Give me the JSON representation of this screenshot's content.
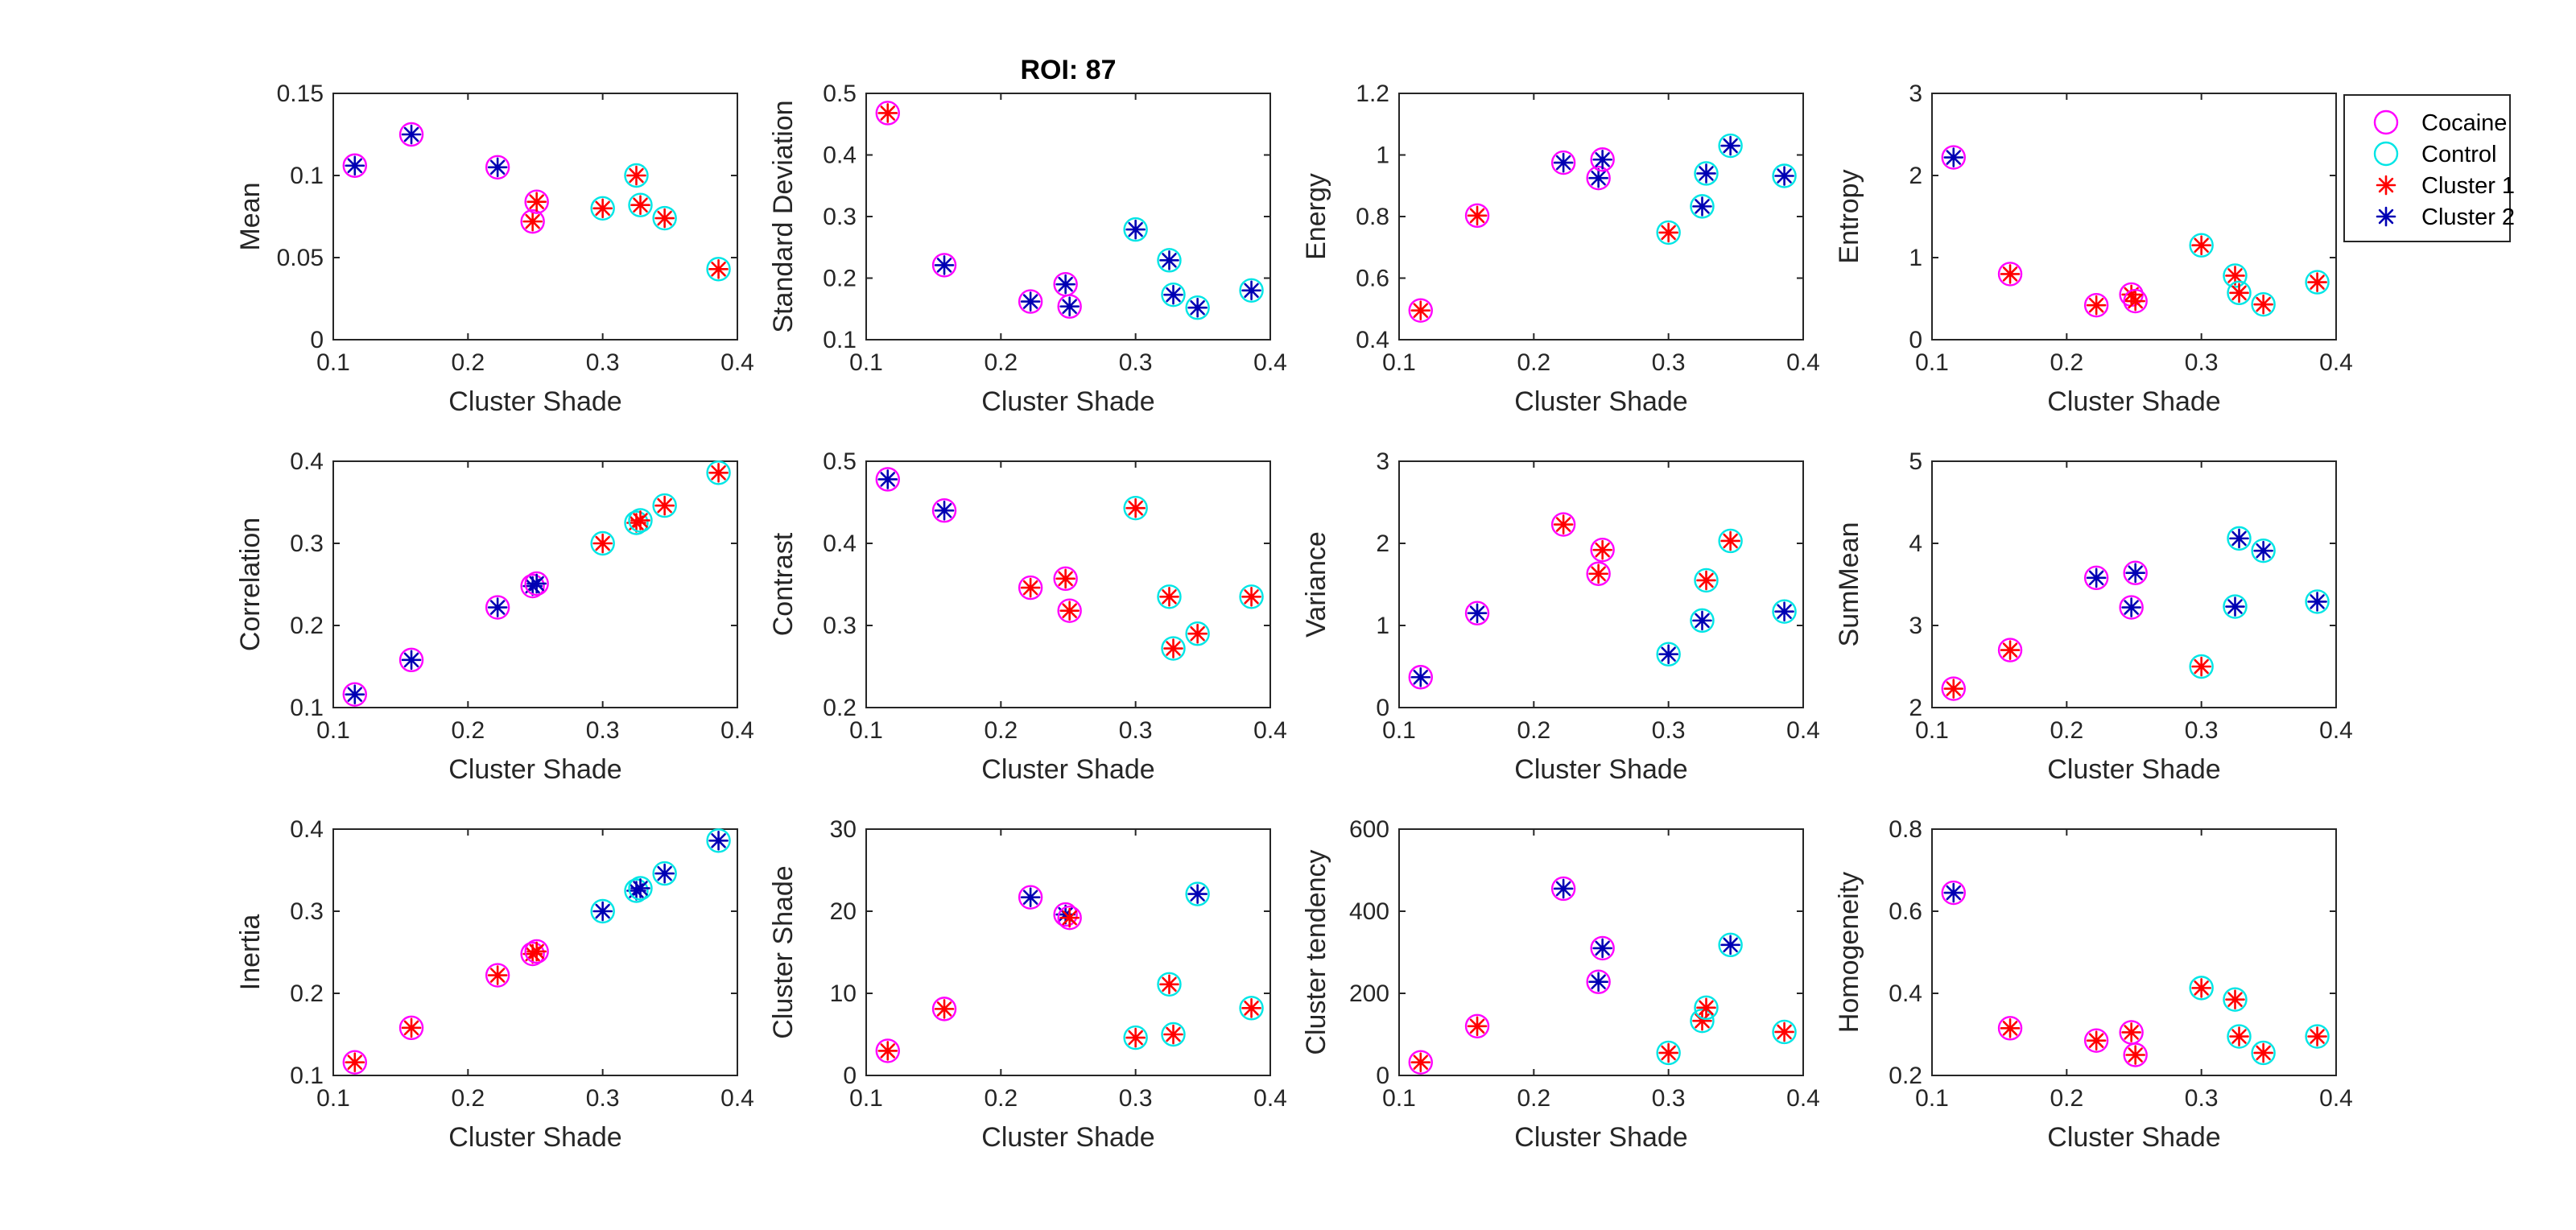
{
  "chart_data": {
    "type": "scatter",
    "title": "ROI: 87",
    "legend_position": "top-right",
    "colors": {
      "Cocaine": "#ff00ff",
      "Control": "#00e5e5",
      "Cluster 1": "#ff0000",
      "Cluster 2": "#0000b4"
    },
    "legend": [
      {
        "label": "Cocaine",
        "marker": "circle",
        "color": "#ff00ff"
      },
      {
        "label": "Control",
        "marker": "circle",
        "color": "#00e5e5"
      },
      {
        "label": "Cluster 1",
        "marker": "asterisk",
        "color": "#ff0000"
      },
      {
        "label": "Cluster 2",
        "marker": "asterisk",
        "color": "#0000b4"
      }
    ],
    "x": [
      0.116,
      0.158,
      0.222,
      0.248,
      0.251,
      0.3,
      0.325,
      0.328,
      0.346,
      0.386
    ],
    "group": [
      "Cocaine",
      "Cocaine",
      "Cocaine",
      "Cocaine",
      "Cocaine",
      "Control",
      "Control",
      "Control",
      "Control",
      "Control"
    ],
    "subplots": [
      {
        "ylabel": "Mean",
        "xlabel": "Cluster Shade",
        "xlim": [
          0.1,
          0.4
        ],
        "xticks": [
          "0.1",
          "0.2",
          "0.3",
          "0.4"
        ],
        "ylim": [
          0,
          0.15
        ],
        "yticks": [
          "0",
          "0.05",
          "0.1",
          "0.15"
        ],
        "y": [
          0.106,
          0.125,
          0.105,
          0.072,
          0.084,
          0.08,
          0.1,
          0.082,
          0.074,
          0.043
        ],
        "cluster": [
          2,
          2,
          2,
          1,
          1,
          1,
          1,
          1,
          1,
          1
        ]
      },
      {
        "ylabel": "Standard Deviation",
        "xlabel": "Cluster Shade",
        "xlim": [
          0.1,
          0.4
        ],
        "xticks": [
          "0.1",
          "0.2",
          "0.3",
          "0.4"
        ],
        "ylim": [
          0.1,
          0.5
        ],
        "yticks": [
          "0.1",
          "0.2",
          "0.3",
          "0.4",
          "0.5"
        ],
        "y": [
          0.468,
          0.221,
          0.162,
          0.19,
          0.154,
          0.279,
          0.229,
          0.173,
          0.152,
          0.18
        ],
        "cluster": [
          1,
          2,
          2,
          2,
          2,
          2,
          2,
          2,
          2,
          2
        ]
      },
      {
        "ylabel": "Energy",
        "xlabel": "Cluster Shade",
        "xlim": [
          0.1,
          0.4
        ],
        "xticks": [
          "0.1",
          "0.2",
          "0.3",
          "0.4"
        ],
        "ylim": [
          0.4,
          1.2
        ],
        "yticks": [
          "0.4",
          "0.6",
          "0.8",
          "1",
          "1.2"
        ],
        "y": [
          0.495,
          0.803,
          0.975,
          0.925,
          0.985,
          0.748,
          0.833,
          0.94,
          1.03,
          0.932
        ],
        "cluster": [
          1,
          1,
          2,
          2,
          2,
          1,
          2,
          2,
          2,
          2
        ]
      },
      {
        "ylabel": "Entropy",
        "xlabel": "Cluster Shade",
        "xlim": [
          0.1,
          0.4
        ],
        "xticks": [
          "0.1",
          "0.2",
          "0.3",
          "0.4"
        ],
        "ylim": [
          0,
          3
        ],
        "yticks": [
          "0",
          "1",
          "2",
          "3"
        ],
        "y": [
          2.22,
          0.8,
          0.42,
          0.55,
          0.47,
          1.15,
          0.78,
          0.57,
          0.43,
          0.7
        ],
        "cluster": [
          2,
          1,
          1,
          1,
          1,
          1,
          1,
          1,
          1,
          1
        ]
      },
      {
        "ylabel": "Correlation",
        "xlabel": "Cluster Shade",
        "xlim": [
          0.1,
          0.4
        ],
        "xticks": [
          "0.1",
          "0.2",
          "0.3",
          "0.4"
        ],
        "ylim": [
          0.1,
          0.4
        ],
        "yticks": [
          "0.1",
          "0.2",
          "0.3",
          "0.4"
        ],
        "y": [
          0.116,
          0.158,
          0.222,
          0.248,
          0.251,
          0.3,
          0.325,
          0.328,
          0.346,
          0.386
        ],
        "cluster": [
          2,
          2,
          2,
          2,
          2,
          1,
          1,
          1,
          1,
          1
        ]
      },
      {
        "ylabel": "Contrast",
        "xlabel": "Cluster Shade",
        "xlim": [
          0.1,
          0.4
        ],
        "xticks": [
          "0.1",
          "0.2",
          "0.3",
          "0.4"
        ],
        "ylim": [
          0.2,
          0.5
        ],
        "yticks": [
          "0.2",
          "0.3",
          "0.4",
          "0.5"
        ],
        "y": [
          0.478,
          0.44,
          0.346,
          0.357,
          0.318,
          0.443,
          0.335,
          0.272,
          0.29,
          0.335
        ],
        "cluster": [
          2,
          2,
          1,
          1,
          1,
          1,
          1,
          1,
          1,
          1
        ]
      },
      {
        "ylabel": "Variance",
        "xlabel": "Cluster Shade",
        "xlim": [
          0.1,
          0.4
        ],
        "xticks": [
          "0.1",
          "0.2",
          "0.3",
          "0.4"
        ],
        "ylim": [
          0,
          3
        ],
        "yticks": [
          "0",
          "1",
          "2",
          "3"
        ],
        "y": [
          0.37,
          1.15,
          2.23,
          1.63,
          1.92,
          0.65,
          1.06,
          1.55,
          2.03,
          1.17
        ],
        "cluster": [
          2,
          2,
          1,
          1,
          1,
          2,
          2,
          1,
          1,
          2
        ]
      },
      {
        "ylabel": "SumMean",
        "xlabel": "Cluster Shade",
        "xlim": [
          0.1,
          0.4
        ],
        "xticks": [
          "0.1",
          "0.2",
          "0.3",
          "0.4"
        ],
        "ylim": [
          2,
          5
        ],
        "yticks": [
          "2",
          "3",
          "4",
          "5"
        ],
        "y": [
          2.23,
          2.7,
          3.58,
          3.22,
          3.64,
          2.5,
          3.23,
          4.06,
          3.91,
          3.29
        ],
        "cluster": [
          1,
          1,
          2,
          2,
          2,
          1,
          2,
          2,
          2,
          2
        ]
      },
      {
        "ylabel": "Inertia",
        "xlabel": "Cluster Shade",
        "xlim": [
          0.1,
          0.4
        ],
        "xticks": [
          "0.1",
          "0.2",
          "0.3",
          "0.4"
        ],
        "ylim": [
          0.1,
          0.4
        ],
        "yticks": [
          "0.1",
          "0.2",
          "0.3",
          "0.4"
        ],
        "y": [
          0.116,
          0.158,
          0.222,
          0.248,
          0.251,
          0.3,
          0.325,
          0.328,
          0.346,
          0.386
        ],
        "cluster": [
          1,
          1,
          1,
          1,
          1,
          2,
          2,
          2,
          2,
          2
        ]
      },
      {
        "ylabel": "Cluster Shade",
        "xlabel": "Cluster Shade",
        "xlim": [
          0.1,
          0.4
        ],
        "xticks": [
          "0.1",
          "0.2",
          "0.3",
          "0.4"
        ],
        "ylim": [
          0,
          30
        ],
        "yticks": [
          "0",
          "10",
          "20",
          "30"
        ],
        "y": [
          3.0,
          8.1,
          21.7,
          19.6,
          19.2,
          4.6,
          11.1,
          5.0,
          22.1,
          8.2
        ],
        "cluster": [
          1,
          1,
          2,
          2,
          1,
          1,
          1,
          1,
          2,
          1
        ]
      },
      {
        "ylabel": "Cluster tendency",
        "xlabel": "Cluster Shade",
        "xlim": [
          0.1,
          0.4
        ],
        "xticks": [
          "0.1",
          "0.2",
          "0.3",
          "0.4"
        ],
        "ylim": [
          0,
          600
        ],
        "yticks": [
          "0",
          "200",
          "400",
          "600"
        ],
        "y": [
          32,
          120,
          455,
          228,
          310,
          55,
          133,
          165,
          318,
          106
        ],
        "cluster": [
          1,
          1,
          2,
          2,
          2,
          1,
          1,
          1,
          2,
          1
        ]
      },
      {
        "ylabel": "Homogeneity",
        "xlabel": "Cluster Shade",
        "xlim": [
          0.1,
          0.4
        ],
        "xticks": [
          "0.1",
          "0.2",
          "0.3",
          "0.4"
        ],
        "ylim": [
          0.2,
          0.8
        ],
        "yticks": [
          "0.2",
          "0.4",
          "0.6",
          "0.8"
        ],
        "y": [
          0.645,
          0.315,
          0.285,
          0.305,
          0.25,
          0.413,
          0.385,
          0.295,
          0.255,
          0.295
        ],
        "cluster": [
          2,
          1,
          1,
          1,
          1,
          1,
          1,
          1,
          1,
          1
        ]
      }
    ]
  }
}
